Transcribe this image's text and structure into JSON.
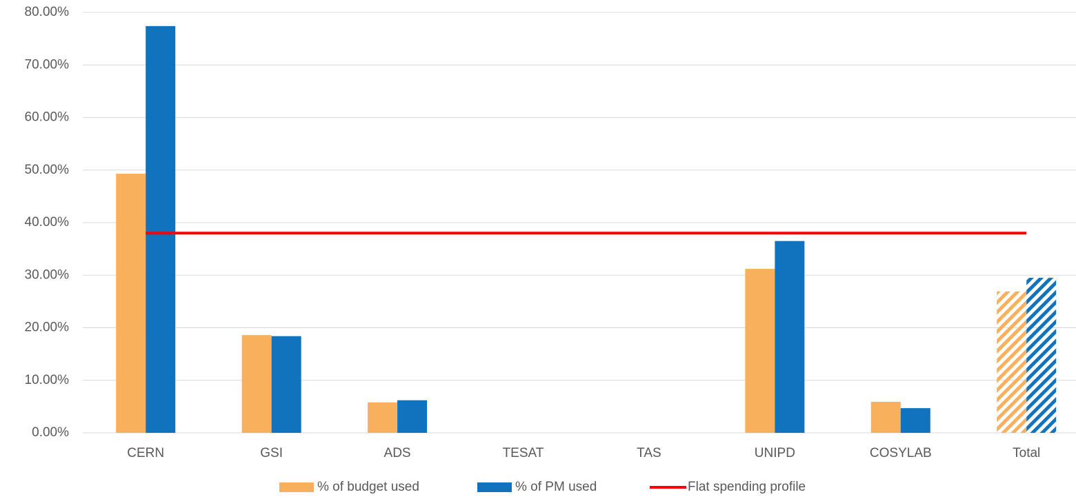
{
  "chart_data": {
    "type": "bar",
    "categories": [
      "CERN",
      "GSI",
      "ADS",
      "TESAT",
      "TAS",
      "UNIPD",
      "COSYLAB",
      "Total"
    ],
    "series": [
      {
        "name": "% of budget used",
        "color": "#f8b05c",
        "values": [
          49.3,
          18.6,
          5.8,
          0,
          0,
          31.2,
          5.9,
          26.9
        ]
      },
      {
        "name": "% of PM used",
        "color": "#1173be",
        "values": [
          77.4,
          18.4,
          6.2,
          0,
          0,
          36.5,
          4.7,
          29.5
        ]
      },
      {
        "name": "Flat spending profile",
        "color": "#ff0000",
        "type": "line",
        "values": [
          38,
          38,
          38,
          38,
          38,
          38,
          38,
          38
        ]
      }
    ],
    "hatched": [
      false,
      false,
      false,
      false,
      false,
      false,
      false,
      true
    ],
    "ylim": [
      0,
      80
    ],
    "yticks": [
      {
        "value": 0,
        "label": "0.00%"
      },
      {
        "value": 10,
        "label": "10.00%"
      },
      {
        "value": 20,
        "label": "20.00%"
      },
      {
        "value": 30,
        "label": "30.00%"
      },
      {
        "value": 40,
        "label": "40.00%"
      },
      {
        "value": 50,
        "label": "50.00%"
      },
      {
        "value": 60,
        "label": "60.00%"
      },
      {
        "value": 70,
        "label": "70.00%"
      },
      {
        "value": 80,
        "label": "80.00%"
      }
    ],
    "grid": true,
    "legend": "bottom"
  }
}
